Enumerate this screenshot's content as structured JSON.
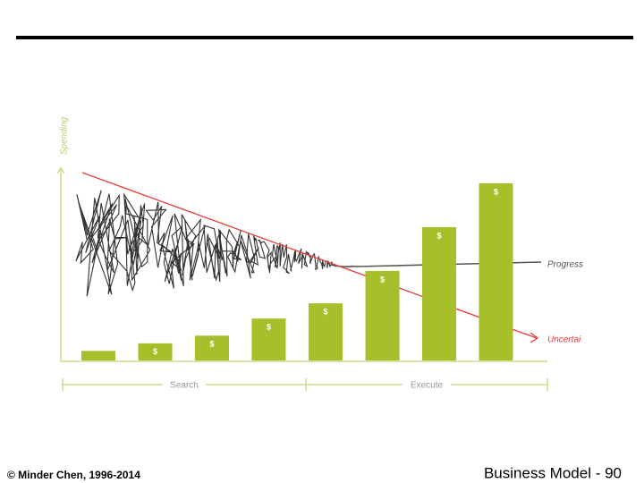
{
  "chart_data": {
    "type": "bar",
    "y_label": "Spending",
    "categories": [
      null,
      null,
      null,
      null,
      null,
      null,
      null,
      null
    ],
    "values": [
      5,
      9,
      13,
      22,
      30,
      47,
      70,
      93
    ],
    "value_labels": [
      null,
      "$",
      "$",
      "$",
      "$",
      "$",
      "$",
      "$"
    ],
    "color": "#a6bf2b",
    "ylim": [
      0,
      100
    ],
    "lines": [
      {
        "name": "Progress",
        "color": "#555555"
      },
      {
        "name": "Uncertai",
        "color": "#e8403a"
      }
    ],
    "phases": [
      "Search",
      "Execute"
    ]
  },
  "footer": {
    "left": "© Minder Chen, 1996-2014",
    "right": "Business Model - 90"
  }
}
